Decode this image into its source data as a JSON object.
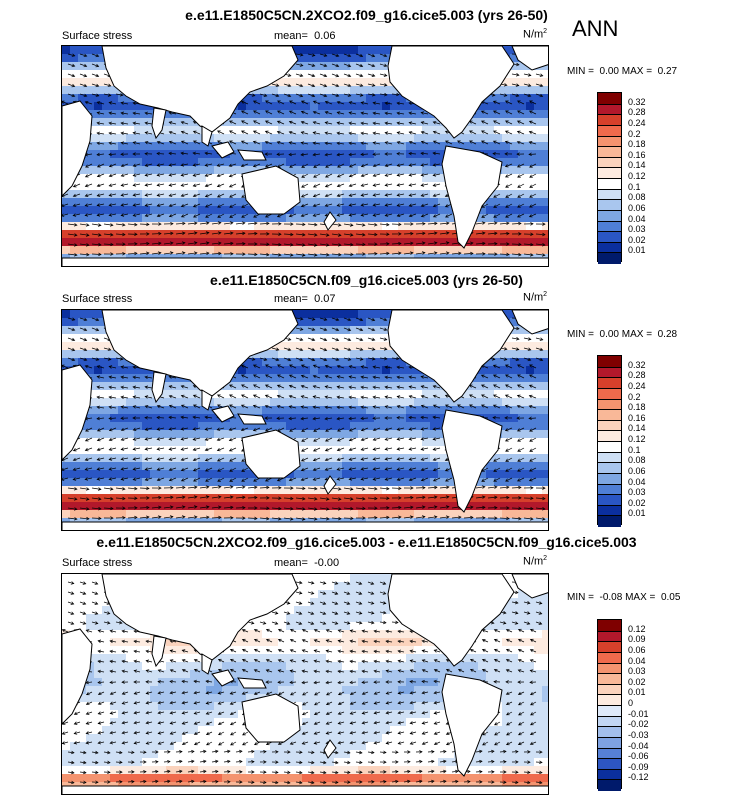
{
  "ann_label": "ANN",
  "panels": [
    {
      "title": "e.e11.E1850C5CN.2XCO2.f09_g16.cice5.003 (yrs 26-50)",
      "variable": "Surface stress",
      "mean_label": "mean=",
      "mean_value": "0.06",
      "units": "N/m",
      "units_sup": "2",
      "min_label": "MIN =",
      "min_value": "0.00",
      "max_label": "MAX =",
      "max_value": "0.27",
      "colorbar_labels": [
        "0.32",
        "0.28",
        "0.24",
        "0.2",
        "0.18",
        "0.16",
        "0.14",
        "0.12",
        "0.1",
        "0.08",
        "0.06",
        "0.04",
        "0.03",
        "0.02",
        "0.01"
      ],
      "colorbar_colors": [
        "#7f0000",
        "#b2182b",
        "#d6402b",
        "#ef6a4c",
        "#f4936f",
        "#f9b898",
        "#fbd3bd",
        "#fdebe0",
        "#ffffff",
        "#cfe0f5",
        "#a9c6ee",
        "#7ea7e3",
        "#4f7fd6",
        "#2a56c4",
        "#0b2f9e",
        "#001a6b"
      ],
      "scheme": "magnitude"
    },
    {
      "title": "e.e11.E1850C5CN.f09_g16.cice5.003 (yrs 26-50)",
      "variable": "Surface stress",
      "mean_label": "mean=",
      "mean_value": "0.07",
      "units": "N/m",
      "units_sup": "2",
      "min_label": "MIN =",
      "min_value": "0.00",
      "max_label": "MAX =",
      "max_value": "0.28",
      "colorbar_labels": [
        "0.32",
        "0.28",
        "0.24",
        "0.2",
        "0.18",
        "0.16",
        "0.14",
        "0.12",
        "0.1",
        "0.08",
        "0.06",
        "0.04",
        "0.03",
        "0.02",
        "0.01"
      ],
      "colorbar_colors": [
        "#7f0000",
        "#b2182b",
        "#d6402b",
        "#ef6a4c",
        "#f4936f",
        "#f9b898",
        "#fbd3bd",
        "#fdebe0",
        "#ffffff",
        "#cfe0f5",
        "#a9c6ee",
        "#7ea7e3",
        "#4f7fd6",
        "#2a56c4",
        "#0b2f9e",
        "#001a6b"
      ],
      "scheme": "magnitude"
    },
    {
      "title": "e.e11.E1850C5CN.2XCO2.f09_g16.cice5.003 - e.e11.E1850C5CN.f09_g16.cice5.003",
      "variable": "Surface stress",
      "mean_label": "mean=",
      "mean_value": "-0.00",
      "units": "N/m",
      "units_sup": "2",
      "min_label": "MIN =",
      "min_value": "-0.08",
      "max_label": "MAX =",
      "max_value": "0.05",
      "colorbar_labels": [
        "0.12",
        "0.09",
        "0.06",
        "0.04",
        "0.03",
        "0.02",
        "0.01",
        "0",
        "-0.01",
        "-0.02",
        "-0.03",
        "-0.04",
        "-0.06",
        "-0.09",
        "-0.12"
      ],
      "colorbar_colors": [
        "#7f0000",
        "#b2182b",
        "#d6402b",
        "#ef6a4c",
        "#f4936f",
        "#f9b898",
        "#fbd3bd",
        "#fdebe0",
        "#dfeafa",
        "#c2d6f3",
        "#a3bfec",
        "#7ea2e2",
        "#5680d6",
        "#2d56c2",
        "#0b2f9e",
        "#001a6b"
      ],
      "scheme": "difference"
    }
  ]
}
